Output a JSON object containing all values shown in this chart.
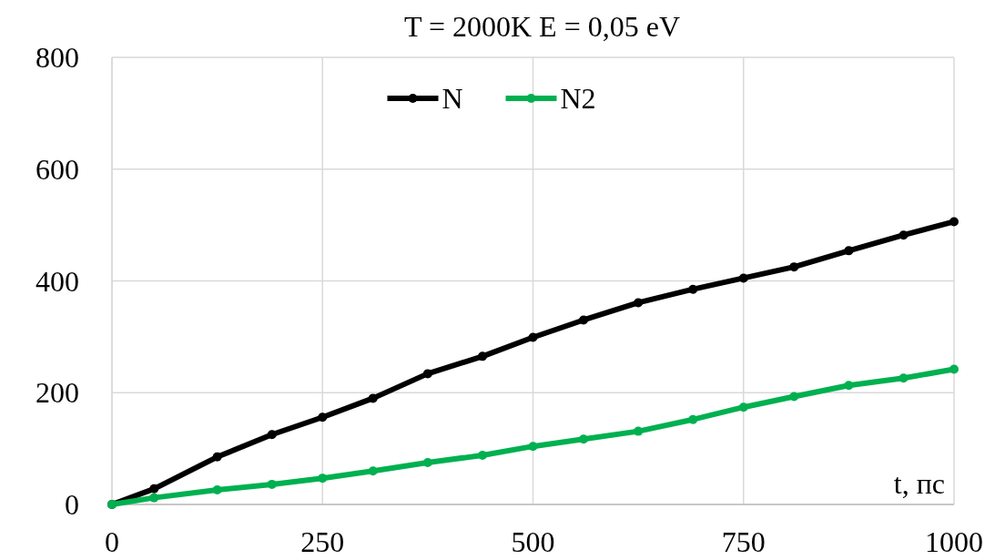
{
  "chart_data": {
    "type": "line",
    "title": "T = 2000K  E = 0,05 eV",
    "xlabel": "t, пс",
    "x": [
      0,
      50,
      125,
      190,
      250,
      310,
      375,
      440,
      500,
      560,
      625,
      690,
      750,
      810,
      875,
      940,
      1000
    ],
    "series": [
      {
        "name": "N",
        "color": "#000000",
        "values": [
          0,
          28,
          85,
          125,
          156,
          190,
          234,
          265,
          299,
          330,
          361,
          385,
          405,
          425,
          454,
          482,
          506
        ]
      },
      {
        "name": "N2",
        "color": "#00b050",
        "values": [
          0,
          12,
          26,
          36,
          47,
          60,
          75,
          88,
          104,
          117,
          131,
          152,
          174,
          193,
          213,
          226,
          242
        ]
      }
    ],
    "xlim": [
      0,
      1000
    ],
    "xticks": [
      0,
      250,
      500,
      750,
      1000
    ],
    "ylim": [
      0,
      800
    ],
    "yticks": [
      0,
      200,
      400,
      600,
      800
    ],
    "grid": true,
    "legend": "top",
    "marker": "circle",
    "line_style": "solid"
  }
}
